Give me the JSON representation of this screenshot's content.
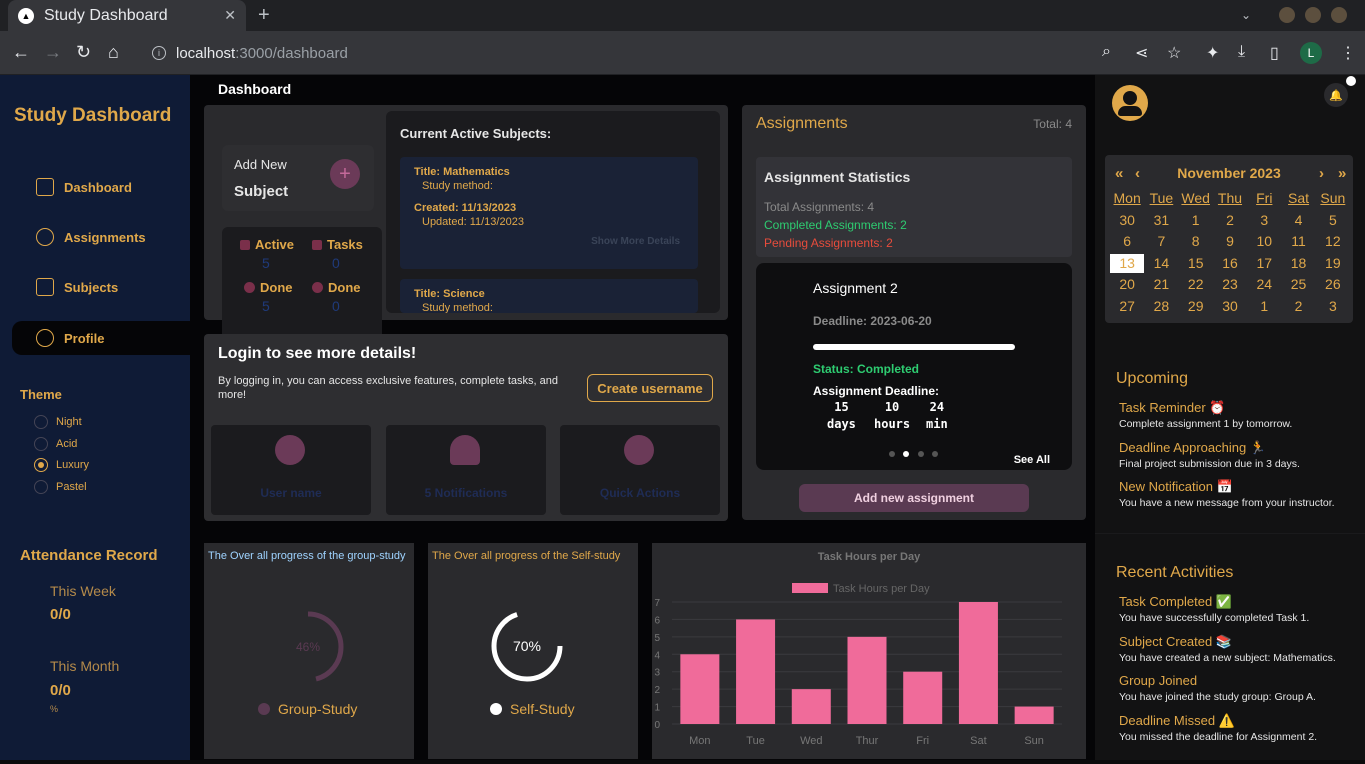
{
  "browser": {
    "tab_title": "Study Dashboard",
    "url_host": "localhost",
    "url_path": ":3000/dashboard",
    "profile_initial": "L"
  },
  "sidebar": {
    "brand": "Study Dashboard",
    "nav": [
      {
        "label": "Dashboard",
        "icon": "graduation-cap-icon"
      },
      {
        "label": "Assignments",
        "icon": "pie-chart-icon"
      },
      {
        "label": "Subjects",
        "icon": "book-icon"
      },
      {
        "label": "Profile",
        "icon": "user-circle-icon",
        "active": true
      }
    ],
    "theme_heading": "Theme",
    "themes": [
      "Night",
      "Acid",
      "Luxury",
      "Pastel"
    ],
    "selected_theme": "Luxury",
    "attendance": {
      "heading": "Attendance Record",
      "week_label": "This Week",
      "week_value": "0/0",
      "month_label": "This Month",
      "month_value": "0/0",
      "pct": "%"
    }
  },
  "main": {
    "title": "Dashboard",
    "add_subject": {
      "line1": "Add New",
      "line2": "Subject"
    },
    "stats": {
      "active_label": "Active",
      "active_value": "5",
      "tasks_label": "Tasks",
      "tasks_value": "0",
      "done_label": "Done",
      "done_value": "5",
      "done2_label": "Done",
      "done2_value": "0"
    },
    "subjects": {
      "heading": "Current Active Subjects:",
      "items": [
        {
          "title": "Title: Mathematics",
          "method": "Study method:",
          "created": "Created: 11/13/2023",
          "updated": "Updated: 11/13/2023",
          "more": "Show More Details"
        },
        {
          "title": "Title: Science",
          "method": "Study method:"
        }
      ]
    },
    "login": {
      "heading": "Login to see more details!",
      "text": "By logging in, you can access exclusive features, complete tasks, and more!",
      "button": "Create username",
      "cards": [
        "User name",
        "5 Notifications",
        "Quick Actions"
      ]
    },
    "assignments": {
      "heading": "Assignments",
      "total": "Total: 4",
      "stats_heading": "Assignment Statistics",
      "total_line": "Total Assignments: 4",
      "completed_line": "Completed Assignments: 2",
      "pending_line": "Pending Assignments: 2",
      "card": {
        "title": "Assignment 2",
        "deadline": "Deadline: 2023-06-20",
        "progress": 1.0,
        "status": "Status: Completed",
        "deadline_label": "Assignment Deadline:",
        "countdown": [
          {
            "n": "15",
            "u": "days"
          },
          {
            "n": "10",
            "u": "hours"
          },
          {
            "n": "24",
            "u": "min"
          }
        ],
        "see_all": "See All"
      },
      "add_button": "Add new assignment"
    },
    "group_chart": {
      "title": "The Over all progress of the group-study",
      "center": "46%",
      "value": 46,
      "legend": "Group-Study"
    },
    "self_chart": {
      "title": "The Over all progress of the Self-study",
      "center": "70%",
      "value": 70,
      "legend": "Self-Study"
    }
  },
  "chart_data": {
    "type": "bar",
    "title": "Task Hours per Day",
    "legend": "Task Hours per Day",
    "categories": [
      "Mon",
      "Tue",
      "Wed",
      "Thur",
      "Fri",
      "Sat",
      "Sun"
    ],
    "values": [
      4,
      6,
      2,
      5,
      3,
      7,
      1
    ],
    "yticks": [
      "0",
      "1",
      "2",
      "3",
      "4",
      "5",
      "6",
      "7"
    ],
    "ylim": [
      0,
      7
    ],
    "color": "#f06b9a"
  },
  "right": {
    "calendar": {
      "month": "November 2023",
      "prev2": "«",
      "prev": "‹",
      "next": "›",
      "next2": "»",
      "days": [
        "Mon",
        "Tue",
        "Wed",
        "Thu",
        "Fri",
        "Sat",
        "Sun"
      ],
      "dates": [
        "30",
        "31",
        "1",
        "2",
        "3",
        "4",
        "5",
        "6",
        "7",
        "8",
        "9",
        "10",
        "11",
        "12",
        "13",
        "14",
        "15",
        "16",
        "17",
        "18",
        "19",
        "20",
        "21",
        "22",
        "23",
        "24",
        "25",
        "26",
        "27",
        "28",
        "29",
        "30",
        "1",
        "2",
        "3"
      ],
      "today": "13"
    },
    "upcoming_heading": "Upcoming",
    "upcoming": [
      {
        "title": "Task Reminder ⏰",
        "desc": "Complete assignment 1 by tomorrow."
      },
      {
        "title": "Deadline Approaching 🏃",
        "desc": "Final project submission due in 3 days."
      },
      {
        "title": "New Notification 📅",
        "desc": "You have a new message from your instructor."
      }
    ],
    "recent_heading": "Recent Activities",
    "recent": [
      {
        "title": "Task Completed ✅",
        "desc": "You have successfully completed Task 1."
      },
      {
        "title": "Subject Created 📚",
        "desc": "You have created a new subject: Mathematics."
      },
      {
        "title": "Group Joined",
        "desc": "You have joined the study group: Group A."
      },
      {
        "title": "Deadline Missed ⚠️",
        "desc": "You missed the deadline for Assignment 2."
      }
    ]
  }
}
